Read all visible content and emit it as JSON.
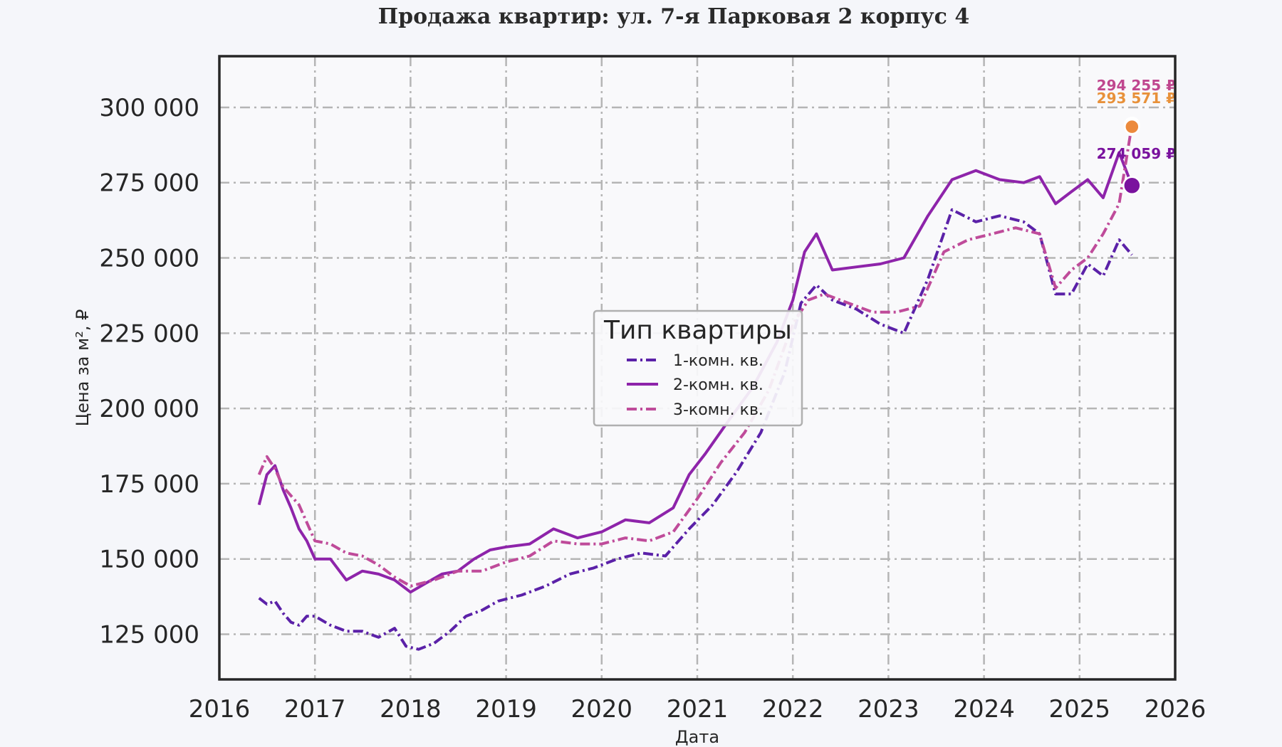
{
  "chart_data": {
    "type": "line",
    "title": "Продажа квартир: ул. 7-я Парковая 2 корпус 4",
    "xlabel": "Дата",
    "ylabel": "Цена за м², ₽",
    "xlim": [
      "2016-01-01",
      "2026-01-01"
    ],
    "ylim": [
      110000,
      317000
    ],
    "x_ticks": [
      "2016",
      "2017",
      "2018",
      "2019",
      "2020",
      "2021",
      "2022",
      "2023",
      "2024",
      "2025",
      "2026"
    ],
    "y_ticks": [
      "125 000",
      "150 000",
      "175 000",
      "200 000",
      "225 000",
      "250 000",
      "275 000",
      "300 000"
    ],
    "y_tick_values": [
      125000,
      150000,
      175000,
      200000,
      225000,
      250000,
      275000,
      300000
    ],
    "grid": true,
    "legend": {
      "title": "Тип квартиры",
      "position": "center"
    },
    "series": [
      {
        "name": "1-комн. кв.",
        "color": "#5b21a8",
        "style": "dashdot",
        "points": [
          [
            "2016-06-01",
            137000
          ],
          [
            "2016-07-01",
            135000
          ],
          [
            "2016-08-01",
            136000
          ],
          [
            "2016-09-01",
            132000
          ],
          [
            "2016-10-01",
            129000
          ],
          [
            "2016-11-01",
            128000
          ],
          [
            "2016-12-01",
            131000
          ],
          [
            "2017-01-01",
            131000
          ],
          [
            "2017-03-01",
            128000
          ],
          [
            "2017-05-01",
            126000
          ],
          [
            "2017-07-01",
            126000
          ],
          [
            "2017-09-01",
            124000
          ],
          [
            "2017-11-01",
            127000
          ],
          [
            "2017-12-15",
            121000
          ],
          [
            "2018-02-01",
            120000
          ],
          [
            "2018-04-01",
            122000
          ],
          [
            "2018-06-01",
            126000
          ],
          [
            "2018-08-01",
            131000
          ],
          [
            "2018-10-01",
            133000
          ],
          [
            "2018-12-01",
            136000
          ],
          [
            "2019-03-01",
            138000
          ],
          [
            "2019-06-01",
            141000
          ],
          [
            "2019-09-01",
            145000
          ],
          [
            "2019-12-01",
            147000
          ],
          [
            "2020-03-01",
            150000
          ],
          [
            "2020-06-01",
            152000
          ],
          [
            "2020-09-01",
            151000
          ],
          [
            "2020-12-01",
            160000
          ],
          [
            "2021-03-01",
            168000
          ],
          [
            "2021-06-01",
            179000
          ],
          [
            "2021-09-01",
            192000
          ],
          [
            "2021-12-01",
            212000
          ],
          [
            "2022-02-01",
            235000
          ],
          [
            "2022-04-01",
            241000
          ],
          [
            "2022-06-01",
            236000
          ],
          [
            "2022-09-01",
            233000
          ],
          [
            "2022-12-01",
            228000
          ],
          [
            "2023-03-01",
            225000
          ],
          [
            "2023-06-01",
            243000
          ],
          [
            "2023-09-01",
            266000
          ],
          [
            "2023-12-01",
            262000
          ],
          [
            "2024-03-01",
            264000
          ],
          [
            "2024-06-01",
            262000
          ],
          [
            "2024-08-01",
            258000
          ],
          [
            "2024-10-01",
            238000
          ],
          [
            "2024-12-01",
            238000
          ],
          [
            "2025-02-01",
            248000
          ],
          [
            "2025-04-01",
            244000
          ],
          [
            "2025-06-01",
            256000
          ],
          [
            "2025-07-20",
            251000
          ]
        ]
      },
      {
        "name": "2-комн. кв.",
        "color": "#8e24aa",
        "style": "solid",
        "points": [
          [
            "2016-06-01",
            168000
          ],
          [
            "2016-07-01",
            178000
          ],
          [
            "2016-08-01",
            181000
          ],
          [
            "2016-09-01",
            173000
          ],
          [
            "2016-10-01",
            167000
          ],
          [
            "2016-11-01",
            160000
          ],
          [
            "2016-12-01",
            156000
          ],
          [
            "2017-01-01",
            150000
          ],
          [
            "2017-03-01",
            150000
          ],
          [
            "2017-05-01",
            143000
          ],
          [
            "2017-07-01",
            146000
          ],
          [
            "2017-09-01",
            145000
          ],
          [
            "2017-11-01",
            143000
          ],
          [
            "2018-01-01",
            139000
          ],
          [
            "2018-03-01",
            142000
          ],
          [
            "2018-05-01",
            145000
          ],
          [
            "2018-07-01",
            146000
          ],
          [
            "2018-09-01",
            150000
          ],
          [
            "2018-11-01",
            153000
          ],
          [
            "2019-01-01",
            154000
          ],
          [
            "2019-04-01",
            155000
          ],
          [
            "2019-07-01",
            160000
          ],
          [
            "2019-10-01",
            157000
          ],
          [
            "2020-01-01",
            159000
          ],
          [
            "2020-04-01",
            163000
          ],
          [
            "2020-07-01",
            162000
          ],
          [
            "2020-10-01",
            167000
          ],
          [
            "2020-12-01",
            178000
          ],
          [
            "2021-02-01",
            185000
          ],
          [
            "2021-05-01",
            196000
          ],
          [
            "2021-08-01",
            207000
          ],
          [
            "2021-11-01",
            222000
          ],
          [
            "2022-01-01",
            236000
          ],
          [
            "2022-02-15",
            252000
          ],
          [
            "2022-04-01",
            258000
          ],
          [
            "2022-06-01",
            246000
          ],
          [
            "2022-09-01",
            247000
          ],
          [
            "2022-12-01",
            248000
          ],
          [
            "2023-03-01",
            250000
          ],
          [
            "2023-06-01",
            264000
          ],
          [
            "2023-09-01",
            276000
          ],
          [
            "2023-12-01",
            279000
          ],
          [
            "2024-03-01",
            276000
          ],
          [
            "2024-06-01",
            275000
          ],
          [
            "2024-08-01",
            277000
          ],
          [
            "2024-10-01",
            268000
          ],
          [
            "2024-12-01",
            272000
          ],
          [
            "2025-02-01",
            276000
          ],
          [
            "2025-04-01",
            270000
          ],
          [
            "2025-06-01",
            285000
          ],
          [
            "2025-07-20",
            274059
          ]
        ]
      },
      {
        "name": "3-комн. кв.",
        "color": "#bf4b9a",
        "style": "dashdot",
        "points": [
          [
            "2016-06-01",
            178000
          ],
          [
            "2016-07-01",
            184000
          ],
          [
            "2016-08-01",
            180000
          ],
          [
            "2016-09-01",
            174000
          ],
          [
            "2016-11-01",
            168000
          ],
          [
            "2017-01-01",
            156000
          ],
          [
            "2017-03-01",
            155000
          ],
          [
            "2017-05-01",
            152000
          ],
          [
            "2017-07-01",
            151000
          ],
          [
            "2017-09-01",
            148000
          ],
          [
            "2017-11-01",
            144000
          ],
          [
            "2018-01-01",
            141000
          ],
          [
            "2018-04-01",
            143000
          ],
          [
            "2018-07-01",
            146000
          ],
          [
            "2018-10-01",
            146000
          ],
          [
            "2019-01-01",
            149000
          ],
          [
            "2019-04-01",
            151000
          ],
          [
            "2019-07-01",
            156000
          ],
          [
            "2019-10-01",
            155000
          ],
          [
            "2020-01-01",
            155000
          ],
          [
            "2020-04-01",
            157000
          ],
          [
            "2020-07-01",
            156000
          ],
          [
            "2020-10-01",
            159000
          ],
          [
            "2021-01-01",
            170000
          ],
          [
            "2021-04-01",
            182000
          ],
          [
            "2021-07-01",
            192000
          ],
          [
            "2021-10-01",
            206000
          ],
          [
            "2022-01-01",
            228000
          ],
          [
            "2022-03-01",
            236000
          ],
          [
            "2022-05-01",
            238000
          ],
          [
            "2022-08-01",
            235000
          ],
          [
            "2022-11-01",
            232000
          ],
          [
            "2023-02-01",
            232000
          ],
          [
            "2023-05-01",
            234000
          ],
          [
            "2023-08-01",
            252000
          ],
          [
            "2023-11-01",
            256000
          ],
          [
            "2024-02-01",
            258000
          ],
          [
            "2024-05-01",
            260000
          ],
          [
            "2024-08-01",
            258000
          ],
          [
            "2024-10-01",
            240000
          ],
          [
            "2024-12-01",
            246000
          ],
          [
            "2025-02-01",
            250000
          ],
          [
            "2025-04-01",
            258000
          ],
          [
            "2025-06-01",
            268000
          ],
          [
            "2025-07-20",
            294255
          ]
        ]
      }
    ],
    "annotations": [
      {
        "text": "294 255 ₽",
        "x": "2025-07-20",
        "y": 294255,
        "color": "#c0478f",
        "marker": "#ffffff"
      },
      {
        "text": "293 571 ₽",
        "x": "2025-07-20",
        "y": 293571,
        "color": "#e8913a",
        "marker": "#ec8a3c"
      },
      {
        "text": "274 059 ₽",
        "x": "2025-07-20",
        "y": 274059,
        "color": "#7a129e",
        "marker": "#7a129e"
      }
    ]
  }
}
